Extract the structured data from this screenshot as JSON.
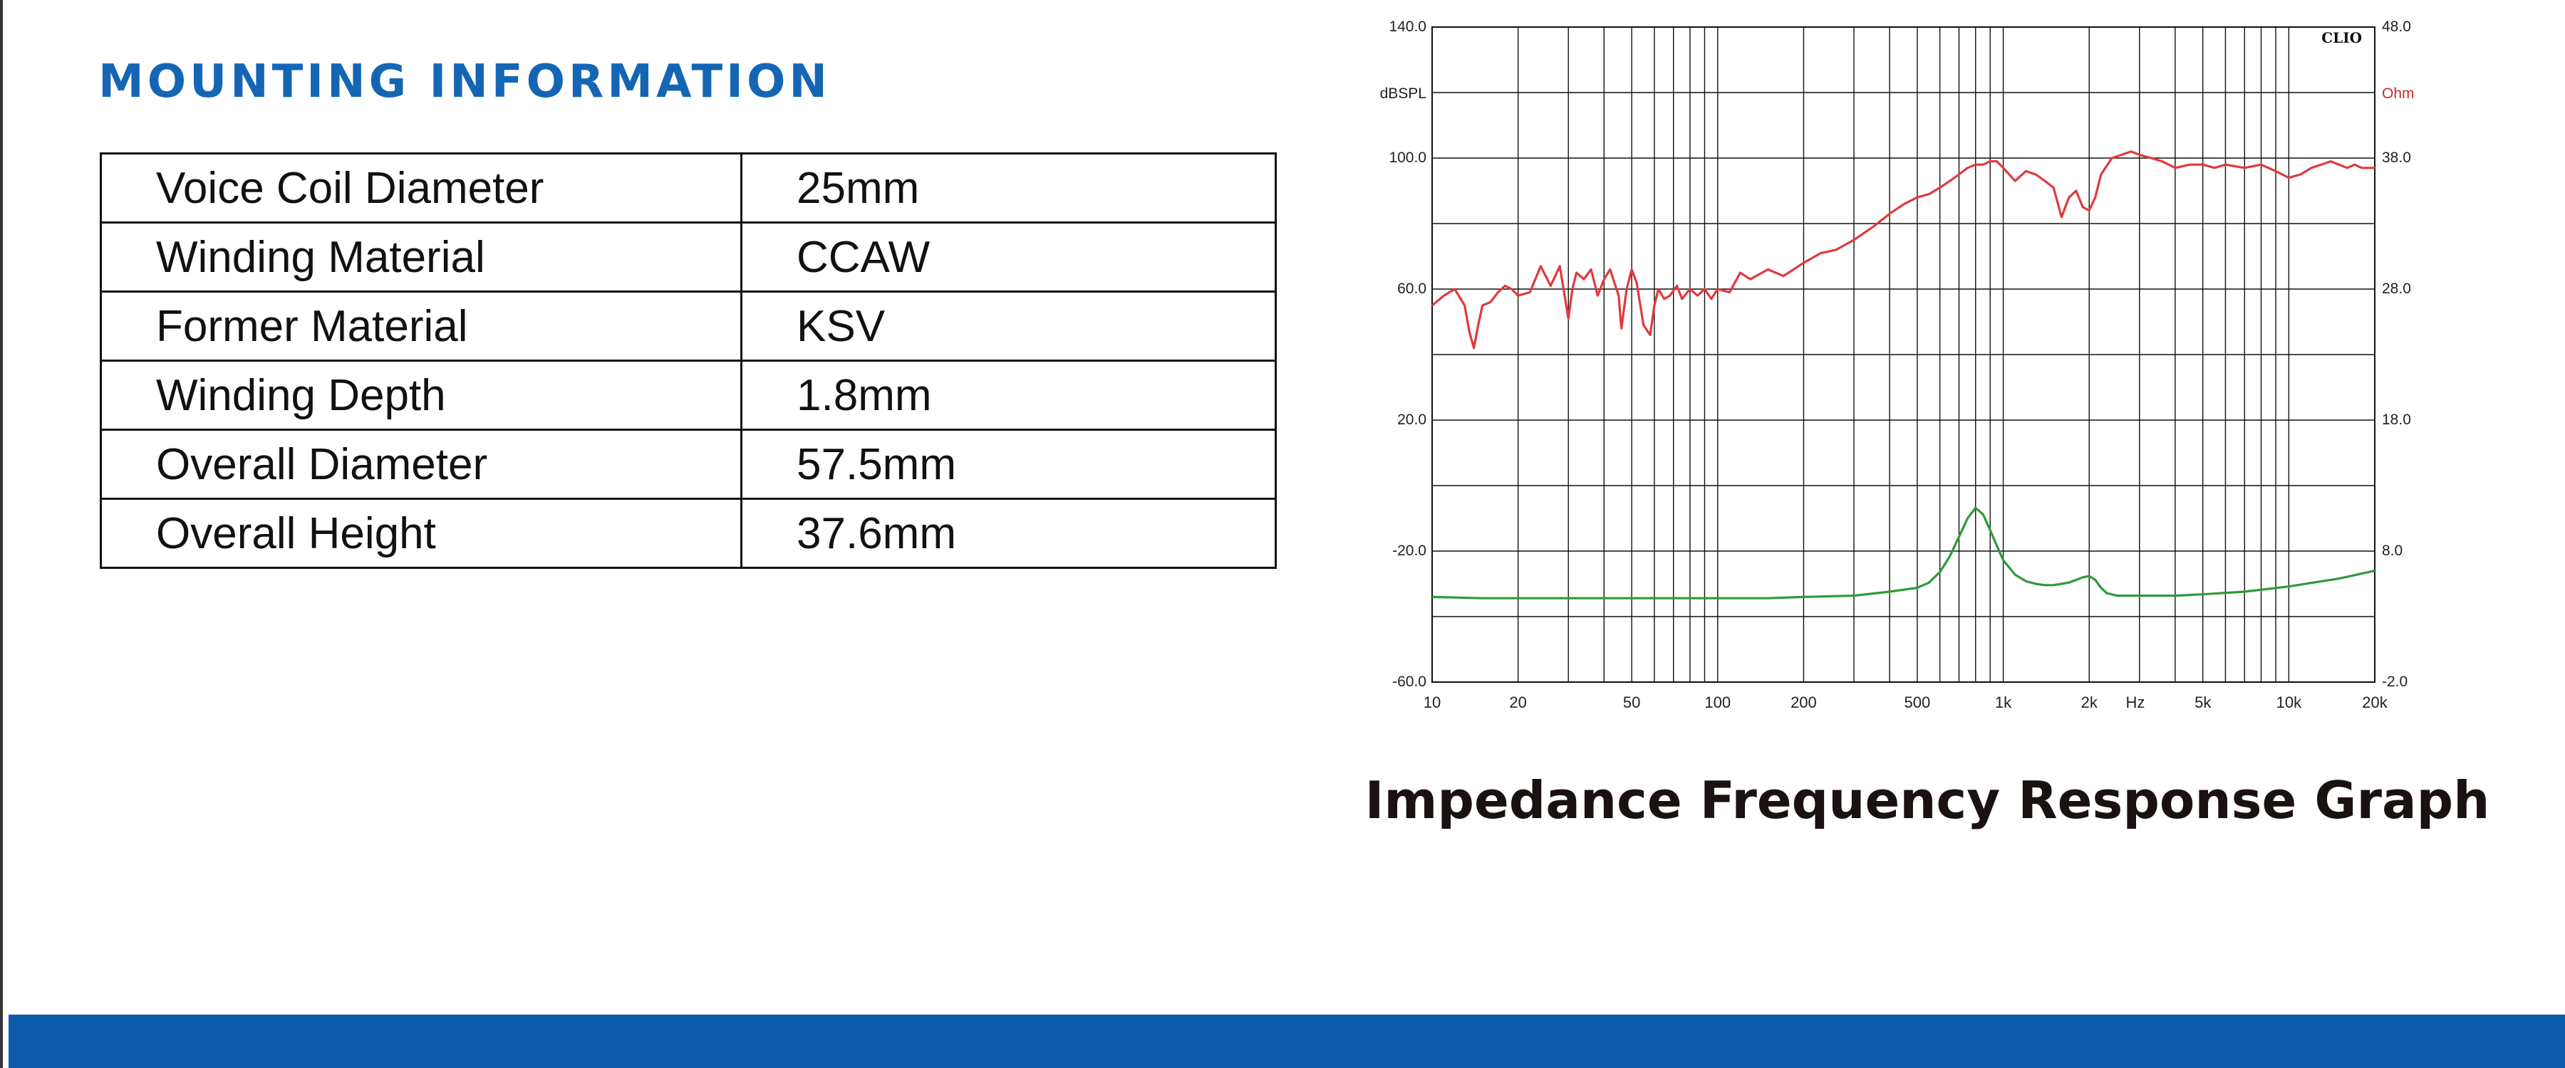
{
  "mounting": {
    "title": "MOUNTING INFORMATION",
    "rows": [
      {
        "label": "Voice Coil Diameter",
        "value": "25mm"
      },
      {
        "label": "Winding Material",
        "value": "CCAW"
      },
      {
        "label": "Former Material",
        "value": "KSV"
      },
      {
        "label": "Winding Depth",
        "value": "1.8mm"
      },
      {
        "label": "Overall Diameter",
        "value": "57.5mm"
      },
      {
        "label": "Overall Height",
        "value": "37.6mm"
      }
    ]
  },
  "graph_caption": "Impedance Frequency Response Graph",
  "colors": {
    "title_blue": "#1466b5",
    "footer_blue": "#0b5aab",
    "spl_red": "#e03a3e",
    "impedance_green": "#2e9a3a",
    "grid": "#111111"
  },
  "chart_data": {
    "type": "line",
    "title": "",
    "watermark": "CLIO",
    "x_scale": "log",
    "xlim": [
      10,
      20000
    ],
    "x_ticks": [
      {
        "value": 10,
        "label": "10"
      },
      {
        "value": 20,
        "label": "20"
      },
      {
        "value": 50,
        "label": "50"
      },
      {
        "value": 100,
        "label": "100"
      },
      {
        "value": 200,
        "label": "200"
      },
      {
        "value": 500,
        "label": "500"
      },
      {
        "value": 1000,
        "label": "1k"
      },
      {
        "value": 2000,
        "label": "2k"
      },
      {
        "value": 5000,
        "label": "5k"
      },
      {
        "value": 10000,
        "label": "10k"
      },
      {
        "value": 20000,
        "label": "20k"
      }
    ],
    "x_unit": "Hz",
    "y_left": {
      "label": "dBSPL",
      "range": [
        -60,
        140
      ],
      "ticks": [
        140,
        100,
        60,
        20,
        -20,
        -60
      ],
      "tick_labels": [
        "140.0",
        "100.0",
        "60.0",
        "20.0",
        "-20.0",
        "-60.0"
      ]
    },
    "y_right": {
      "label": "Ohm",
      "range": [
        -2,
        48
      ],
      "ticks": [
        48,
        38,
        28,
        18,
        8,
        -2
      ],
      "tick_labels": [
        "48.0",
        "38.0",
        "28.0",
        "18.0",
        "8.0",
        "-2.0"
      ]
    },
    "grid": true,
    "series": [
      {
        "axis": "left",
        "x": [
          10,
          11,
          12,
          13,
          13.5,
          14,
          14.5,
          15,
          16,
          17,
          18,
          19,
          20,
          22,
          24,
          26,
          28,
          30,
          31,
          32,
          34,
          36,
          38,
          40,
          42,
          45,
          46,
          48,
          50,
          52,
          55,
          58,
          60,
          62,
          65,
          68,
          72,
          75,
          80,
          85,
          90,
          95,
          100,
          110,
          120,
          130,
          150,
          170,
          200,
          230,
          260,
          300,
          350,
          400,
          450,
          500,
          550,
          600,
          650,
          700,
          750,
          800,
          850,
          900,
          950,
          1000,
          1100,
          1200,
          1300,
          1400,
          1500,
          1600,
          1700,
          1800,
          1900,
          2000,
          2100,
          2200,
          2400,
          2600,
          2800,
          3000,
          3300,
          3600,
          4000,
          4500,
          5000,
          5500,
          6000,
          7000,
          8000,
          9000,
          10000,
          11000,
          12000,
          13000,
          14000,
          15000,
          16000,
          17000,
          18000,
          20000
        ],
        "values": [
          55,
          58,
          60,
          55,
          47,
          42,
          49,
          55,
          56,
          59,
          61,
          60,
          58,
          59,
          67,
          61,
          67,
          51,
          60,
          65,
          63,
          66,
          58,
          63,
          66,
          58,
          48,
          60,
          66,
          62,
          49,
          46,
          55,
          60,
          57,
          58,
          61,
          57,
          60,
          58,
          60,
          57,
          60,
          59,
          65,
          63,
          66,
          64,
          68,
          71,
          72,
          75,
          79,
          83,
          86,
          88,
          89,
          91,
          93,
          95,
          97,
          98,
          98,
          99,
          99,
          97,
          93,
          96,
          95,
          93,
          91,
          82,
          88,
          90,
          85,
          84,
          88,
          95,
          100,
          101,
          102,
          101,
          100,
          99,
          97,
          98,
          98,
          97,
          98,
          97,
          98,
          96,
          94,
          95,
          97,
          98,
          99,
          98,
          97,
          98,
          97,
          97
        ]
      },
      {
        "axis": "right",
        "x": [
          10,
          15,
          20,
          30,
          50,
          70,
          100,
          150,
          200,
          300,
          400,
          500,
          550,
          600,
          650,
          700,
          750,
          800,
          850,
          900,
          950,
          1000,
          1100,
          1200,
          1300,
          1400,
          1500,
          1600,
          1700,
          1800,
          1900,
          2000,
          2100,
          2200,
          2300,
          2500,
          2800,
          3000,
          4000,
          5000,
          7000,
          10000,
          15000,
          20000
        ],
        "values": [
          4.5,
          4.4,
          4.4,
          4.4,
          4.4,
          4.4,
          4.4,
          4.4,
          4.5,
          4.6,
          4.9,
          5.2,
          5.6,
          6.4,
          7.6,
          9.1,
          10.5,
          11.3,
          10.8,
          9.6,
          8.4,
          7.3,
          6.2,
          5.7,
          5.5,
          5.4,
          5.4,
          5.5,
          5.6,
          5.8,
          6.0,
          6.1,
          5.8,
          5.2,
          4.8,
          4.6,
          4.6,
          4.6,
          4.6,
          4.7,
          4.9,
          5.3,
          5.9,
          6.5
        ]
      }
    ]
  }
}
